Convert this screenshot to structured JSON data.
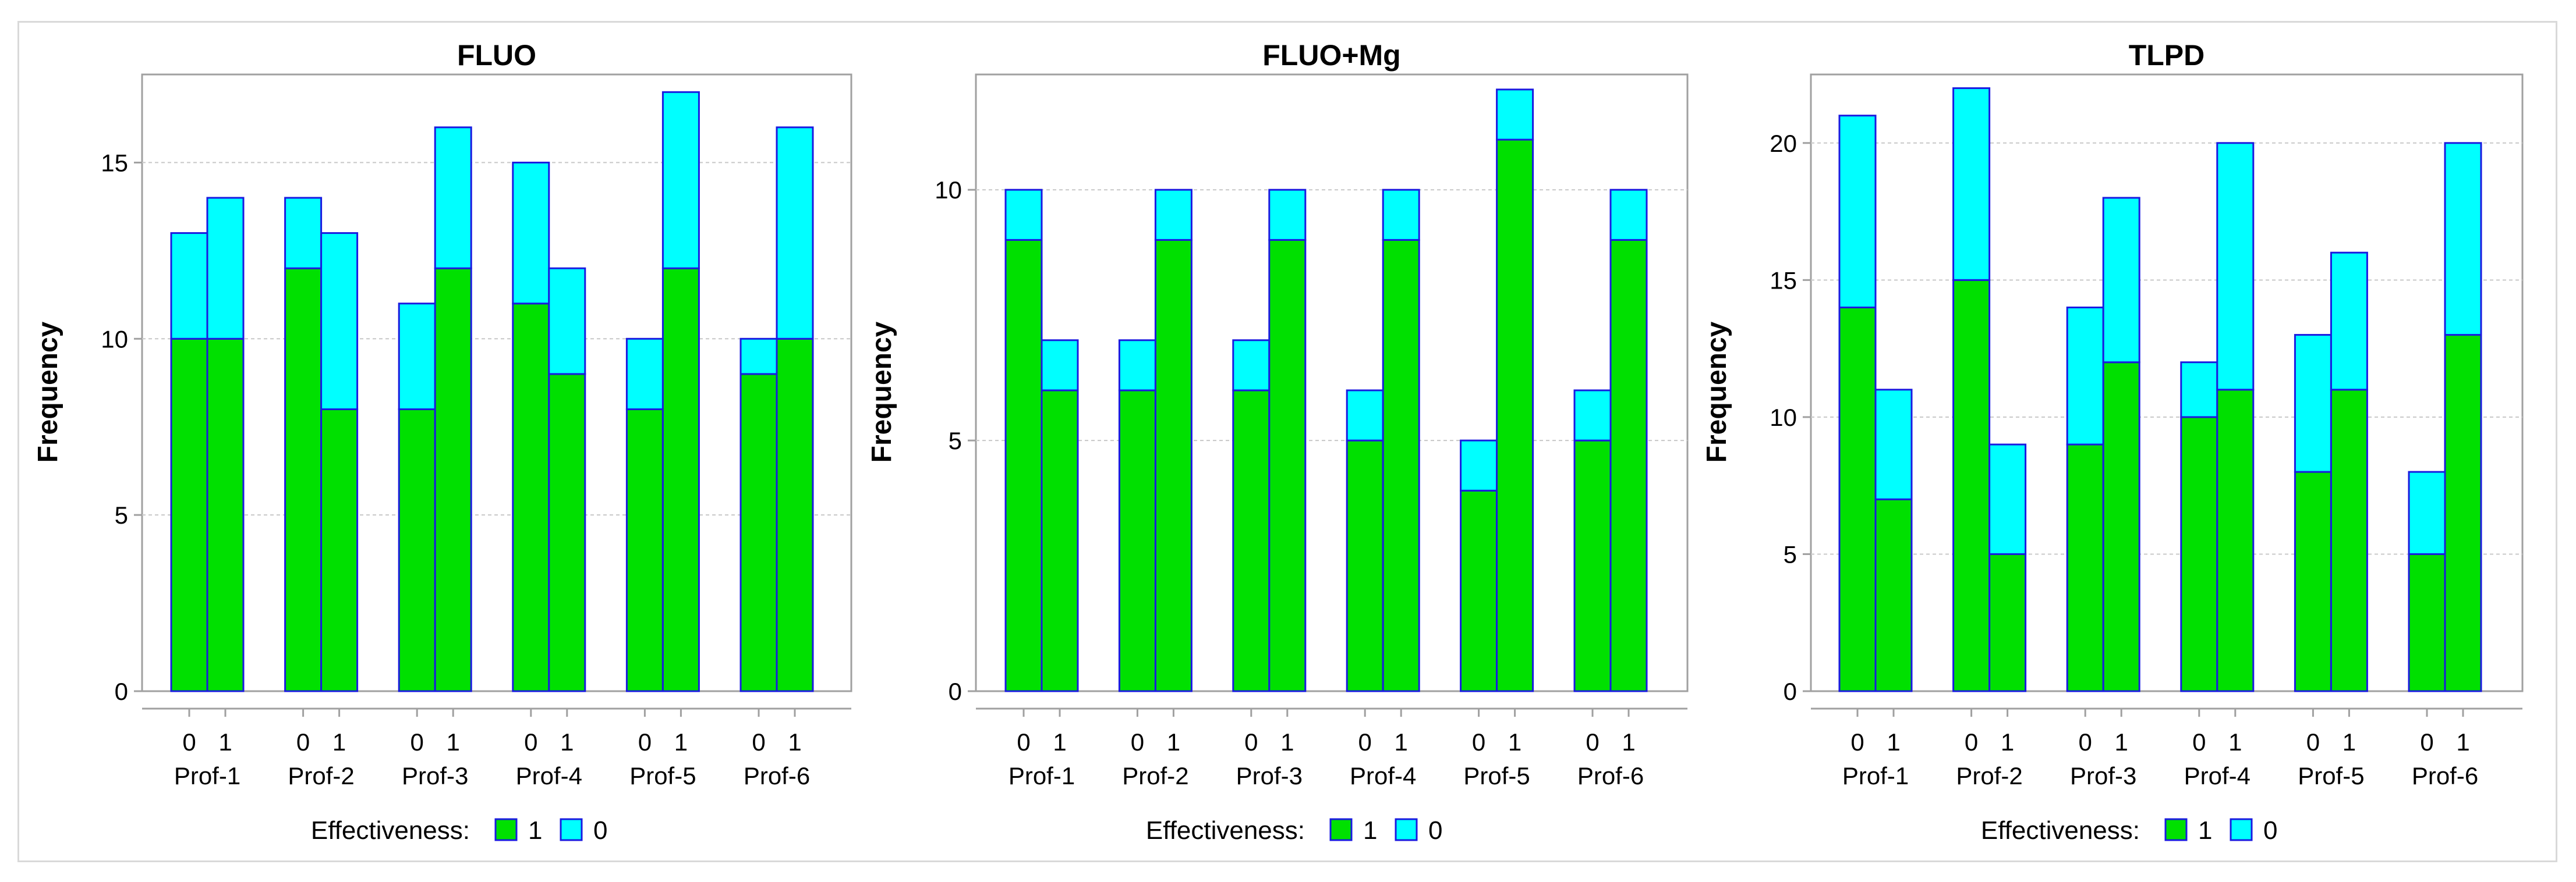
{
  "chart_data": [
    {
      "type": "bar",
      "title": "FLUO",
      "ylabel": "Frequency",
      "ylim": [
        0,
        17.5
      ],
      "yticks": [
        0,
        5,
        10,
        15
      ],
      "grid": true,
      "groups": [
        "Prof-1",
        "Prof-2",
        "Prof-3",
        "Prof-4",
        "Prof-5",
        "Prof-6"
      ],
      "subcategories": [
        "0",
        "1"
      ],
      "legend_title": "Effectiveness:",
      "legend_placement": "bottom",
      "stacking": "stacked",
      "series": [
        {
          "name": "1",
          "color": "#00e000",
          "values": [
            [
              10,
              10
            ],
            [
              12,
              8
            ],
            [
              8,
              12
            ],
            [
              11,
              9
            ],
            [
              8,
              12
            ],
            [
              9,
              10
            ]
          ]
        },
        {
          "name": "0",
          "color": "#00ffff",
          "values": [
            [
              3,
              4
            ],
            [
              2,
              5
            ],
            [
              3,
              4
            ],
            [
              4,
              3
            ],
            [
              2,
              5
            ],
            [
              1,
              6
            ]
          ]
        }
      ]
    },
    {
      "type": "bar",
      "title": "FLUO+Mg",
      "ylabel": "Frequency",
      "ylim": [
        0,
        12.3
      ],
      "yticks": [
        0,
        5,
        10
      ],
      "grid": true,
      "groups": [
        "Prof-1",
        "Prof-2",
        "Prof-3",
        "Prof-4",
        "Prof-5",
        "Prof-6"
      ],
      "subcategories": [
        "0",
        "1"
      ],
      "legend_title": "Effectiveness:",
      "legend_placement": "bottom",
      "stacking": "stacked",
      "series": [
        {
          "name": "1",
          "color": "#00e000",
          "values": [
            [
              9,
              6
            ],
            [
              6,
              9
            ],
            [
              6,
              9
            ],
            [
              5,
              9
            ],
            [
              4,
              11
            ],
            [
              5,
              9
            ]
          ]
        },
        {
          "name": "0",
          "color": "#00ffff",
          "values": [
            [
              1,
              1
            ],
            [
              1,
              1
            ],
            [
              1,
              1
            ],
            [
              1,
              1
            ],
            [
              1,
              1
            ],
            [
              1,
              1
            ]
          ]
        }
      ]
    },
    {
      "type": "bar",
      "title": "TLPD",
      "ylabel": "Frequency",
      "ylim": [
        0,
        22.5
      ],
      "yticks": [
        0,
        5,
        10,
        15,
        20
      ],
      "grid": true,
      "groups": [
        "Prof-1",
        "Prof-2",
        "Prof-3",
        "Prof-4",
        "Prof-5",
        "Prof-6"
      ],
      "subcategories": [
        "0",
        "1"
      ],
      "legend_title": "Effectiveness:",
      "legend_placement": "bottom",
      "stacking": "stacked",
      "series": [
        {
          "name": "1",
          "color": "#00e000",
          "values": [
            [
              14,
              7
            ],
            [
              15,
              5
            ],
            [
              9,
              12
            ],
            [
              10,
              11
            ],
            [
              8,
              11
            ],
            [
              5,
              13
            ]
          ]
        },
        {
          "name": "0",
          "color": "#00ffff",
          "values": [
            [
              7,
              4
            ],
            [
              7,
              4
            ],
            [
              5,
              6
            ],
            [
              2,
              9
            ],
            [
              5,
              5
            ],
            [
              3,
              7
            ]
          ]
        }
      ]
    }
  ],
  "style": {
    "bar_outline": "#1a1ae0",
    "axis_color": "#a0a0a0",
    "grid_color": "#c8c8c8"
  }
}
